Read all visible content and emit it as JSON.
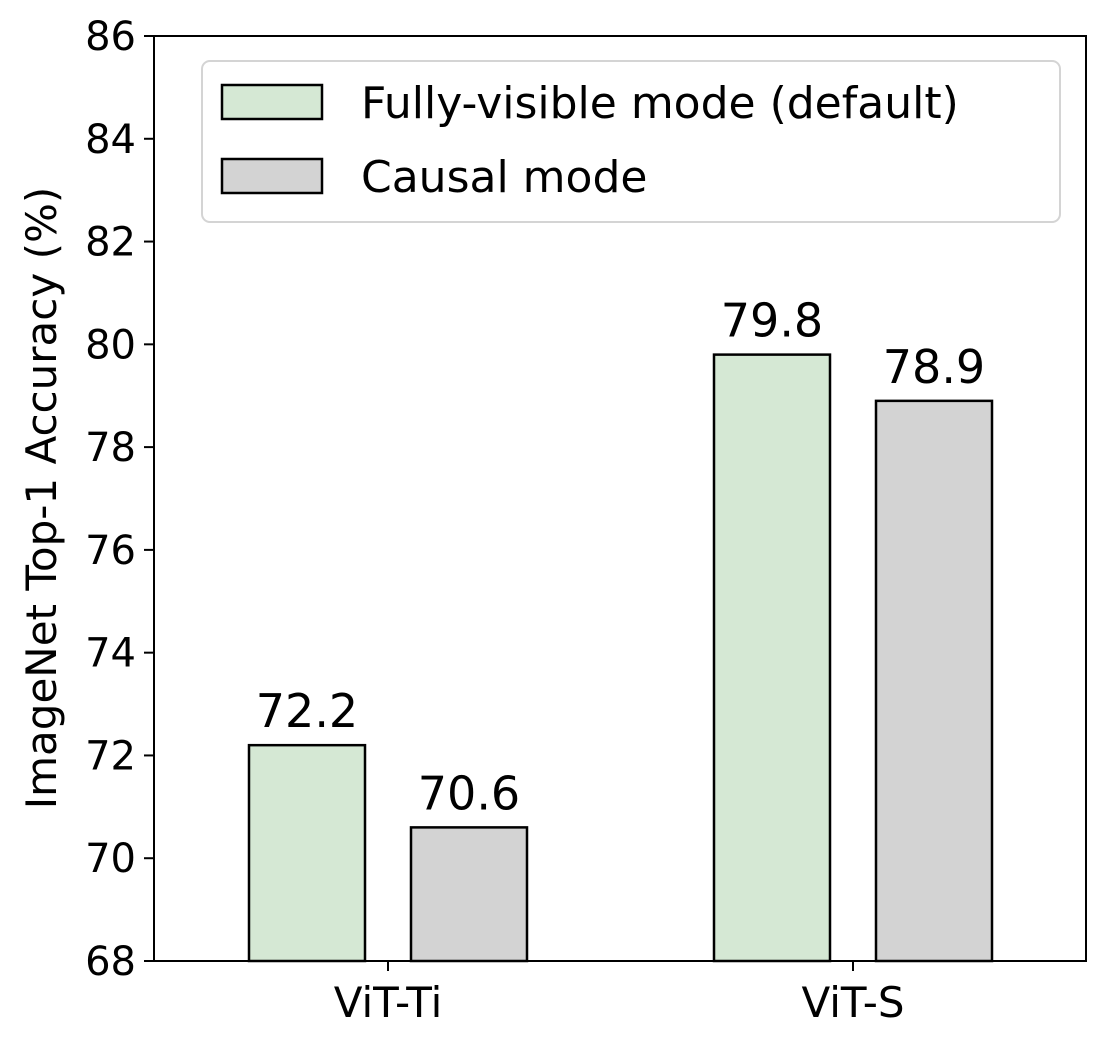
{
  "chart_data": {
    "type": "bar",
    "title": "",
    "xlabel": "",
    "ylabel": "ImageNet Top-1 Accuracy (%)",
    "ylim": [
      68,
      86
    ],
    "yticks": [
      "68",
      "70",
      "72",
      "74",
      "76",
      "78",
      "80",
      "82",
      "84",
      "86"
    ],
    "categories": [
      "ViT-Ti",
      "ViT-S"
    ],
    "series": [
      {
        "name": "Fully-visible mode (default)",
        "values": [
          72.2,
          79.8
        ],
        "labels": [
          "72.2",
          "79.8"
        ],
        "color": "#d5e8d4"
      },
      {
        "name": "Causal mode",
        "values": [
          70.6,
          78.9
        ],
        "labels": [
          "70.6",
          "78.9"
        ],
        "color": "#d3d3d3"
      }
    ],
    "legend": {
      "position": "top-right"
    },
    "grid": false
  }
}
